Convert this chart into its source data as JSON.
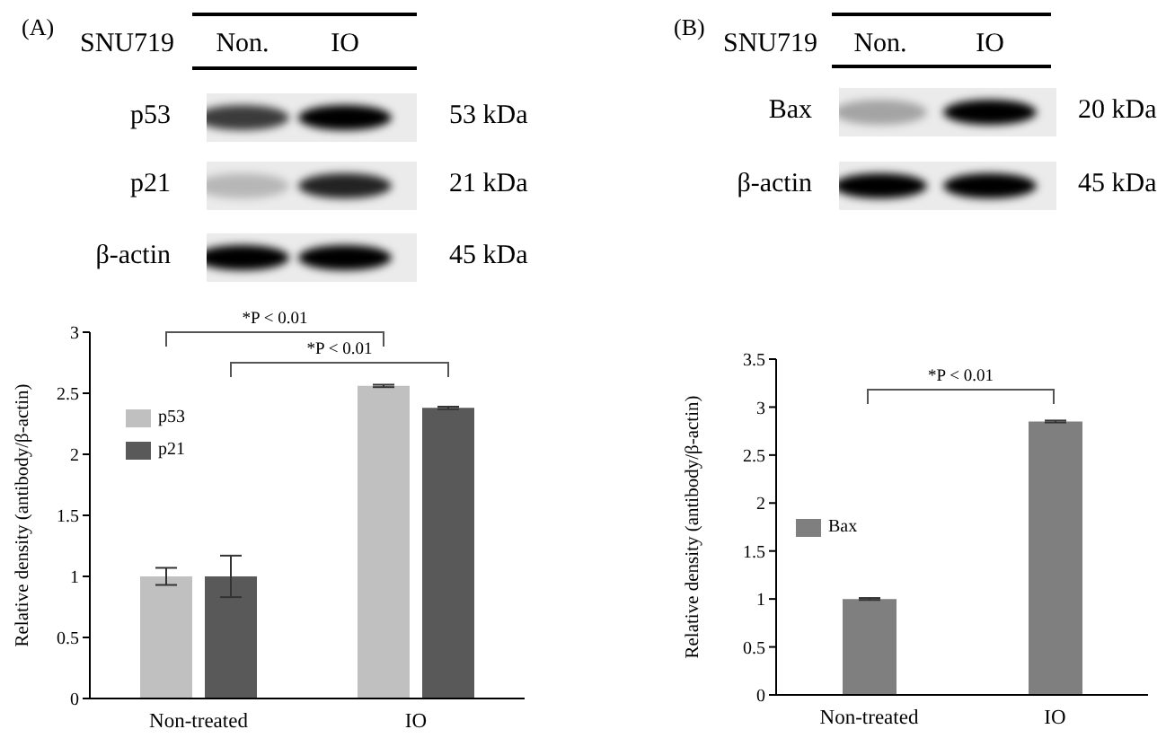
{
  "chart_data": [
    {
      "type": "bar",
      "title": "(A)",
      "categories": [
        "Non-treated",
        "IO"
      ],
      "ylabel": "Relative density (antibody/β-actin)",
      "series": [
        {
          "name": "p53",
          "color": "#c0c0c0",
          "values": [
            1.0,
            2.56
          ],
          "errors": [
            0.07,
            0.01
          ]
        },
        {
          "name": "p21",
          "color": "#595959",
          "values": [
            1.0,
            2.38
          ],
          "errors": [
            0.17,
            0.01
          ]
        }
      ],
      "ylim": [
        0,
        3
      ],
      "yticks": [
        0,
        0.5,
        1,
        1.5,
        2,
        2.5,
        3
      ],
      "legend": "top left",
      "annotations": [
        "SNU719",
        "Non.",
        "IO",
        "p53",
        "53 kDa",
        "p21",
        "21 kDa",
        "β-actin",
        "45 kDa",
        "*P < 0.01",
        "*P < 0.01"
      ]
    },
    {
      "type": "bar",
      "title": "(B)",
      "categories": [
        "Non-treated",
        "IO"
      ],
      "ylabel": "Relative density (antibody/β-actin)",
      "series": [
        {
          "name": "Bax",
          "color": "#7f7f7f",
          "values": [
            1.0,
            2.85
          ],
          "errors": [
            0.01,
            0.01
          ]
        }
      ],
      "ylim": [
        0,
        3.5
      ],
      "yticks": [
        0,
        0.5,
        1,
        1.5,
        2,
        2.5,
        3,
        3.5
      ],
      "legend": "left",
      "annotations": [
        "SNU719",
        "Non.",
        "IO",
        "Bax",
        "20 kDa",
        "β-actin",
        "45 kDa",
        "*P < 0.01"
      ]
    }
  ]
}
